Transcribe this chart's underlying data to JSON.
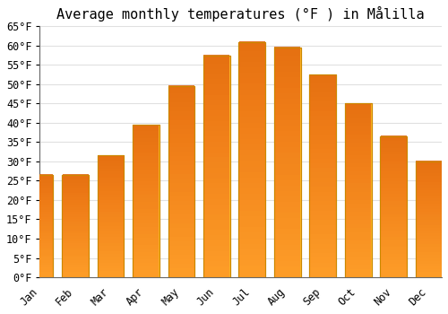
{
  "title": "Average monthly temperatures (°F ) in Målilla",
  "months": [
    "Jan",
    "Feb",
    "Mar",
    "Apr",
    "May",
    "Jun",
    "Jul",
    "Aug",
    "Sep",
    "Oct",
    "Nov",
    "Dec"
  ],
  "values": [
    26.5,
    26.5,
    31.5,
    39.5,
    49.5,
    57.5,
    61.0,
    59.5,
    52.5,
    45.0,
    36.5,
    30.0
  ],
  "bar_color_top": "#FDB827",
  "bar_color_bottom": "#F5A000",
  "bar_edge_color": "#CC8800",
  "ylim": [
    0,
    65
  ],
  "yticks": [
    0,
    5,
    10,
    15,
    20,
    25,
    30,
    35,
    40,
    45,
    50,
    55,
    60,
    65
  ],
  "background_color": "#ffffff",
  "grid_color": "#e0e0e0",
  "title_fontsize": 11,
  "tick_fontsize": 8.5,
  "font_family": "monospace"
}
